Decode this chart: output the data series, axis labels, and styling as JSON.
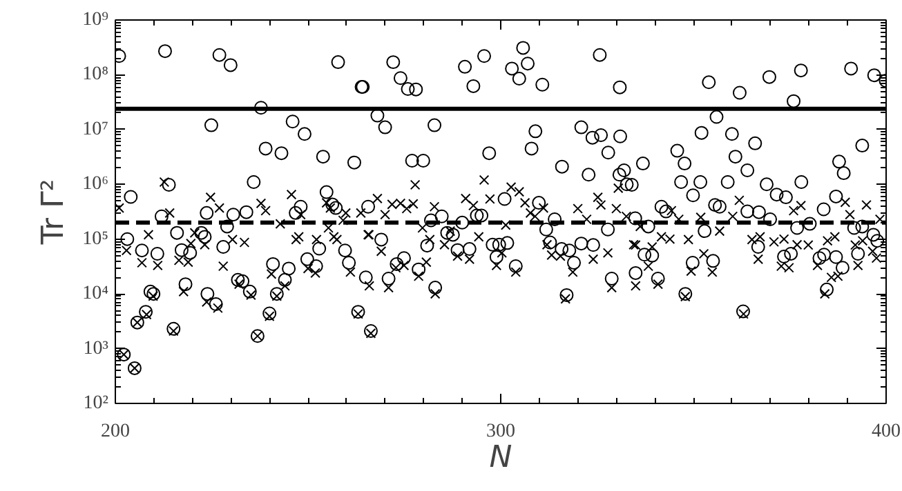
{
  "chart_data": {
    "type": "scatter",
    "xlabel": "N",
    "ylabel": "Tr Γ²",
    "log": "y",
    "grid": false,
    "xlim": [
      200,
      400
    ],
    "xticks": [
      200,
      300,
      400
    ],
    "ylim": [
      100,
      1000000000
    ],
    "yticks": [
      {
        "value": 100,
        "label": "10²"
      },
      {
        "value": 1000,
        "label": "10³"
      },
      {
        "value": 10000,
        "label": "10⁴"
      },
      {
        "value": 100000,
        "label": "10⁵"
      },
      {
        "value": 1000000,
        "label": "10⁶"
      },
      {
        "value": 10000000,
        "label": "10⁷"
      },
      {
        "value": 100000000,
        "label": "10⁸"
      },
      {
        "value": 1000000000,
        "label": "10⁹"
      }
    ],
    "ref_lines": [
      {
        "axis": "y",
        "value": 24000000,
        "line_style": "solid",
        "color": "#000000"
      },
      {
        "axis": "y",
        "value": 200000,
        "line_style": "dashed",
        "color": "#000000"
      }
    ],
    "series": [
      {
        "color": "#000000",
        "marker": "circle",
        "x": [
          201.0,
          212.9,
          227.0,
          229.9,
          224.9,
          237.8,
          246.0,
          249.1,
          239.0,
          243.1,
          235.9,
          253.9,
          262.0,
          263.9,
          257.8,
          213.9,
          212.0,
          223.7,
          230.6,
          234.0,
          246.8,
          248.1,
          254.8,
          256.3,
          257.2,
          265.6,
          204.0,
          203.1,
          206.9,
          210.9,
          216.0,
          217.2,
          219.4,
          222.3,
          223.2,
          228.0,
          229.0,
          240.9,
          245.0,
          249.8,
          252.1,
          252.9,
          259.6,
          260.6,
          265.0,
          209.1,
          209.9,
          218.2,
          223.9,
          226.1,
          231.8,
          233.0,
          234.9,
          241.9,
          244.0,
          205.7,
          207.9,
          215.1,
          236.9,
          240.0,
          263.0,
          266.3,
          202.2,
          205.0,
          264.2,
          272.1,
          274.0,
          275.9,
          278.0,
          290.7,
          292.9,
          295.7,
          302.9,
          305.8,
          307.0,
          304.8,
          310.8,
          325.7,
          330.9,
          268.0,
          270.0,
          282.8,
          297.0,
          309.0,
          308.0,
          320.9,
          323.8,
          326.0,
          331.0,
          327.9,
          315.9,
          322.8,
          330.8,
          332.0,
          332.7,
          277.0,
          279.9,
          269.0,
          270.9,
          273.0,
          274.9,
          278.7,
          281.9,
          280.9,
          284.7,
          286.1,
          287.6,
          288.8,
          290.0,
          291.9,
          293.8,
          295.0,
          297.9,
          299.6,
          301.7,
          298.9,
          301.0,
          303.9,
          309.9,
          311.8,
          314.0,
          312.8,
          315.8,
          317.8,
          319.0,
          320.9,
          324.0,
          327.8,
          328.8,
          283.0,
          317.1,
          354.0,
          362.0,
          369.7,
          377.9,
          376.0,
          390.9,
          396.9,
          399.9,
          356.0,
          352.1,
          360.0,
          366.0,
          360.9,
          345.8,
          347.7,
          393.8,
          387.8,
          389.0,
          336.9,
          334.0,
          346.8,
          351.8,
          349.9,
          358.9,
          364.0,
          369.0,
          378.0,
          371.6,
          374.0,
          387.0,
          341.7,
          342.9,
          355.6,
          356.8,
          364.0,
          367.0,
          369.9,
          383.8,
          334.9,
          338.3,
          352.9,
          366.8,
          376.9,
          380.2,
          391.7,
          393.8,
          396.7,
          397.7,
          392.7,
          337.3,
          339.3,
          335.0,
          340.8,
          349.8,
          355.1,
          373.5,
          375.3,
          382.7,
          383.9,
          387.0,
          388.7,
          384.6,
          347.9,
          362.9
        ],
        "values": [
          220000000.0,
          270000000.0,
          230000000.0,
          150000000.0,
          12000000.0,
          25000000.0,
          14000000.0,
          8300000.0,
          4500000.0,
          3700000.0,
          1100000.0,
          3200000.0,
          2500000.0,
          60000000.0,
          170000000.0,
          980000.0,
          260000.0,
          300000.0,
          280000.0,
          310000.0,
          300000.0,
          390000.0,
          720000.0,
          430000.0,
          370000.0,
          390000.0,
          590000.0,
          100000.0,
          62000.0,
          54000.0,
          130000.0,
          63000.0,
          56000.0,
          130000.0,
          110000.0,
          72000.0,
          170000.0,
          35000.0,
          29000.0,
          43000.0,
          32000.0,
          67000.0,
          62000.0,
          37000.0,
          20000.0,
          11000.0,
          10000.0,
          15000.0,
          10000.0,
          6500.0,
          18000.0,
          17000.0,
          11000.0,
          10000.0,
          18000.0,
          3000.0,
          4700.0,
          2300.0,
          1700.0,
          4400.0,
          4700.0,
          2100.0,
          780.0,
          440.0,
          60000000.0,
          170000000.0,
          87000000.0,
          55000000.0,
          54000000.0,
          140000000.0,
          62000000.0,
          220000000.0,
          130000000.0,
          310000000.0,
          160000000.0,
          85000000.0,
          66000000.0,
          230000000.0,
          59000000.0,
          18000000.0,
          11000000.0,
          12000000.0,
          3700000.0,
          9300000.0,
          4500000.0,
          11000000.0,
          7100000.0,
          7900000.0,
          7500000.0,
          3800000.0,
          2100000.0,
          1500000.0,
          1500000.0,
          1800000.0,
          1000000.0,
          2700000.0,
          2700000.0,
          98000.0,
          19000.0,
          35000.0,
          45000.0,
          28000.0,
          220000.0,
          76000.0,
          260000.0,
          130000.0,
          120000.0,
          63000.0,
          200000.0,
          66000.0,
          270000.0,
          270000.0,
          79000.0,
          79000.0,
          85000.0,
          47000.0,
          540000.0,
          32000.0,
          460000.0,
          150000.0,
          230000.0,
          87000.0,
          66000.0,
          62000.0,
          37000.0,
          83000.0,
          78000.0,
          150000.0,
          19000.0,
          13000.0,
          9500.0,
          73000000.0,
          47000000.0,
          91000000.0,
          120000000.0,
          33000000.0,
          130000000.0,
          98000000.0,
          78000000.0,
          17000000.0,
          8700000.0,
          8300000.0,
          5600000.0,
          3200000.0,
          4100000.0,
          2400000.0,
          5100000.0,
          2600000.0,
          1600000.0,
          2400000.0,
          980000.0,
          1100000.0,
          1100000.0,
          630000.0,
          1100000.0,
          1800000.0,
          1000000.0,
          1100000.0,
          650000.0,
          580000.0,
          600000.0,
          390000.0,
          320000.0,
          420000.0,
          390000.0,
          320000.0,
          310000.0,
          230000.0,
          350000.0,
          240000.0,
          170000.0,
          140000.0,
          72000.0,
          160000.0,
          190000.0,
          160000.0,
          170000.0,
          120000.0,
          93000.0,
          54000.0,
          52000.0,
          50000.0,
          24000.0,
          19000.0,
          37000.0,
          40000.0,
          48000.0,
          54000.0,
          45000.0,
          52000.0,
          47000.0,
          30000.0,
          12000.0,
          10000.0,
          4800.0
        ]
      },
      {
        "color": "#000000",
        "marker": "cross",
        "x": [
          201.0,
          202.9,
          206.9,
          211.0,
          208.6,
          212.7,
          214.1,
          216.5,
          217.7,
          218.9,
          220.6,
          223.2,
          224.7,
          227.0,
          228.0,
          230.4,
          232.1,
          233.5,
          235.2,
          237.8,
          239.0,
          242.8,
          245.7,
          246.9,
          247.6,
          252.2,
          251.9,
          255.3,
          255.8,
          257.5,
          259.8,
          261.0,
          263.7,
          265.6,
          205.7,
          208.1,
          215.1,
          223.7,
          226.6,
          236.9,
          240.0,
          240.5,
          241.9,
          244.0,
          263.0,
          266.3,
          202.2,
          205.0,
          209.8,
          219.6,
          248.1,
          250.0,
          254.8,
          256.7,
          259.1,
          268.0,
          270.0,
          271.8,
          274.0,
          275.6,
          277.3,
          277.8,
          265.8,
          269.0,
          265.9,
          270.9,
          272.8,
          274.9,
          278.7,
          280.7,
          279.7,
          281.6,
          282.8,
          285.4,
          286.9,
          288.8,
          291.9,
          290.9,
          292.9,
          294.3,
          295.7,
          297.2,
          298.9,
          300.3,
          301.3,
          302.7,
          304.8,
          306.3,
          307.7,
          308.9,
          311.1,
          303.9,
          312.0,
          313.2,
          315.5,
          316.8,
          318.7,
          320.0,
          322.3,
          325.2,
          326.0,
          324.0,
          327.8,
          330.0,
          330.5,
          328.8,
          283.0,
          332.6,
          334.5,
          335.0,
          336.2,
          339.3,
          335.0,
          338.3,
          340.8,
          341.7,
          343.9,
          344.3,
          346.2,
          348.7,
          349.4,
          351.9,
          352.7,
          354.9,
          356.8,
          360.2,
          361.9,
          363.0,
          347.9,
          365.2,
          367.3,
          366.8,
          370.9,
          373.5,
          372.8,
          374.8,
          376.0,
          377.9,
          376.9,
          379.8,
          382.2,
          384.1,
          384.8,
          386.7,
          385.8,
          387.5,
          389.4,
          390.6,
          392.0,
          392.7,
          393.9,
          394.9,
          396.5,
          397.5,
          398.4
        ],
        "values": [
          370000.0,
          62000.0,
          37000.0,
          33000.0,
          120000.0,
          1100000.0,
          300000.0,
          41000.0,
          11000.0,
          38000.0,
          130000.0,
          79000.0,
          580000.0,
          370000.0,
          32000.0,
          98000.0,
          15000.0,
          87000.0,
          9500.0,
          450000.0,
          330000.0,
          190000.0,
          650000.0,
          98000.0,
          110000.0,
          98000.0,
          24000.0,
          160000.0,
          370000.0,
          98000.0,
          300000.0,
          25000.0,
          300000.0,
          120000.0,
          3000.0,
          4200.0,
          2100.0,
          7100.0,
          5500.0,
          1700.0,
          3900.0,
          23000.0,
          9100.0,
          14000.0,
          4300.0,
          1900.0,
          780.0,
          440.0,
          9100.0,
          83000.0,
          280000.0,
          29000.0,
          460000.0,
          110000.0,
          220000.0,
          550000.0,
          280000.0,
          430000.0,
          450000.0,
          360000.0,
          440000.0,
          980000.0,
          120000.0,
          60000.0,
          14000.0,
          13000.0,
          30000.0,
          33000.0,
          21000.0,
          38000.0,
          160000.0,
          98000.0,
          390000.0,
          79000.0,
          140000.0,
          49000.0,
          43000.0,
          550000.0,
          410000.0,
          110000.0,
          1200000.0,
          540000.0,
          33000.0,
          56000.0,
          180000.0,
          890000.0,
          730000.0,
          460000.0,
          300000.0,
          260000.0,
          370000.0,
          25000.0,
          79000.0,
          51000.0,
          49000.0,
          8100.0,
          25000.0,
          360000.0,
          230000.0,
          580000.0,
          420000.0,
          43000.0,
          56000.0,
          360000.0,
          850000.0,
          13000.0,
          10000.0,
          260000.0,
          79000.0,
          78000.0,
          170000.0,
          72000.0,
          14000.0,
          32000.0,
          15000.0,
          110000.0,
          100000.0,
          330000.0,
          230000.0,
          98000.0,
          26000.0,
          250000.0,
          54000.0,
          25000.0,
          140000.0,
          260000.0,
          510000.0,
          4300.0,
          8900.0,
          98000.0,
          110000.0,
          43000.0,
          89000.0,
          100000.0,
          32000.0,
          30000.0,
          330000.0,
          410000.0,
          79000.0,
          78000.0,
          33000.0,
          10000.0,
          93000.0,
          110000.0,
          20000.0,
          21000.0,
          470000.0,
          280000.0,
          78000.0,
          33000.0,
          93000.0,
          420000.0,
          60000.0,
          45000.0,
          230000.0
        ]
      }
    ]
  }
}
